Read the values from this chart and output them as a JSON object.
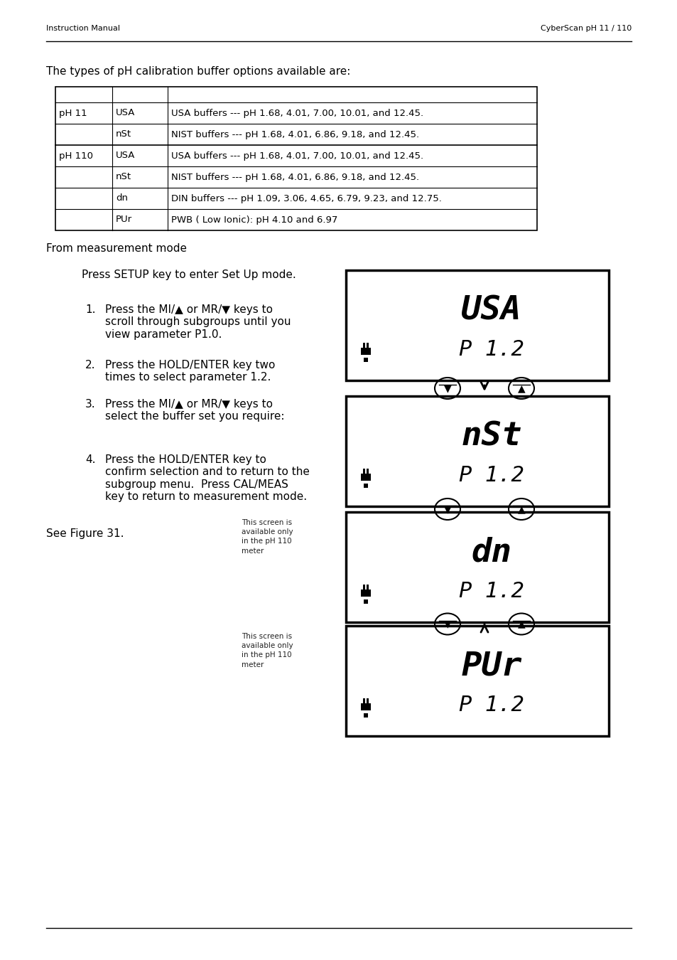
{
  "title_left": "Instruction Manual",
  "title_right": "CyberScan pH 11 / 110",
  "intro_text": "The types of pH calibration buffer options available are:",
  "table_rows": [
    [
      "pH 11",
      "USA",
      "USA buffers --- pH 1.68, 4.01, 7.00, 10.01, and 12.45."
    ],
    [
      "",
      "nSt",
      "NIST buffers --- pH 1.68, 4.01, 6.86, 9.18, and 12.45."
    ],
    [
      "pH 110",
      "USA",
      "USA buffers --- pH 1.68, 4.01, 7.00, 10.01, and 12.45."
    ],
    [
      "",
      "nSt",
      "NIST buffers --- pH 1.68, 4.01, 6.86, 9.18, and 12.45."
    ],
    [
      "",
      "dn",
      "DIN buffers --- pH 1.09, 3.06, 4.65, 6.79, 9.23, and 12.75."
    ],
    [
      "",
      "PUr",
      "PWB ( Low Ionic): pH 4.10 and 6.97"
    ]
  ],
  "section_header": "From measurement mode",
  "setup_text": "Press SETUP key to enter Set Up mode.",
  "steps": [
    [
      "1.",
      "Press the MI/▲ or MR/▼ keys to\nscroll through subgroups until you\nview parameter P1.0."
    ],
    [
      "2.",
      "Press the HOLD/ENTER key two\ntimes to select parameter 1.2."
    ],
    [
      "3.",
      "Press the MI/▲ or MR/▼ keys to\nselect the buffer set you require:"
    ],
    [
      "4.",
      "Press the HOLD/ENTER key to\nconfirm selection and to return to the\nsubgroup menu.  Press CAL/MEAS\nkey to return to measurement mode."
    ]
  ],
  "see_figure": "See Figure 31.",
  "screens": [
    {
      "top_text": "USA",
      "bottom_text": "P 1.2",
      "note": ""
    },
    {
      "top_text": "nSt",
      "bottom_text": "P 1.2",
      "note": ""
    },
    {
      "top_text": "dn",
      "bottom_text": "P 1.2",
      "note": "This screen is\navailable only\nin the pH 110\nmeter"
    },
    {
      "top_text": "PUr",
      "bottom_text": "P 1.2",
      "note": "This screen is\navailable only\nin the pH 110\nmeter"
    }
  ],
  "bg_color": "#ffffff",
  "text_color": "#000000",
  "line_color": "#000000"
}
